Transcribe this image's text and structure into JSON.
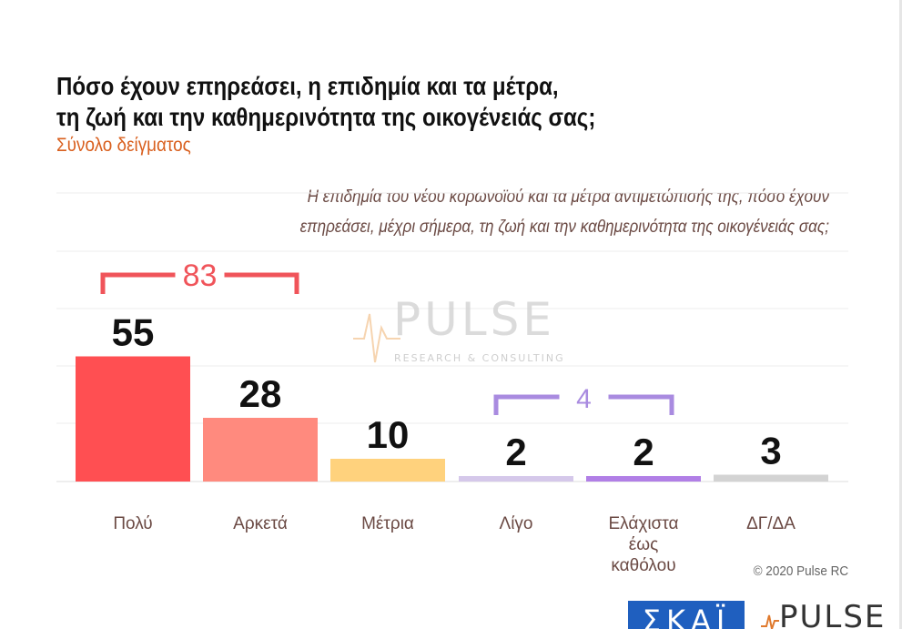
{
  "header": {
    "title_line1": "Πόσο έχουν επηρεάσει, η επιδημία και τα μέτρα,",
    "title_line2": "τη ζωή και την καθημερινότητα της οικογένειάς σας;",
    "subtitle": "Σύνολο δείγματος",
    "question_line1": "Η επιδημία του νέου κορωνοϊού και τα μέτρα αντιμετώπισής της, πόσο έχουν",
    "question_line2": "επηρεάσει, μέχρι σήμερα, τη ζωή και την καθημερινότητα της οικογένειάς σας;"
  },
  "watermark": {
    "brand": "PULSE",
    "tagline": "RESEARCH & CONSULTING"
  },
  "footer": {
    "copyright": "© 2020 Pulse RC"
  },
  "logos": {
    "broadcaster": "ΣΚΑΪ",
    "pollster": "PULSE"
  },
  "colors": {
    "title": "#111111",
    "subtitle": "#d9601f",
    "question": "#6b4a44",
    "category_label": "#6b4a44",
    "bracket_high": "#f0545a",
    "bracket_low": "#a98be0"
  },
  "chart_data": {
    "type": "bar",
    "categories": [
      "Πολύ",
      "Αρκετά",
      "Μέτρια",
      "Λίγο",
      "Ελάχιστα έως καθόλου",
      "ΔΓ/ΔΑ"
    ],
    "category_lines": [
      [
        "Πολύ"
      ],
      [
        "Αρκετά"
      ],
      [
        "Μέτρια"
      ],
      [
        "Λίγο"
      ],
      [
        "Ελάχιστα",
        "έως",
        "καθόλου"
      ],
      [
        "ΔΓ/ΔΑ"
      ]
    ],
    "values": [
      55,
      28,
      10,
      2,
      2,
      3
    ],
    "value_labels": [
      "55",
      "28",
      "10",
      "2",
      "2",
      "3"
    ],
    "bar_colors": [
      "#ff4f52",
      "#ff8a7e",
      "#ffd27d",
      "#d5c8ea",
      "#b17fe6",
      "#d3d3d3"
    ],
    "ylim": [
      0,
      60
    ],
    "grid": true,
    "groups": [
      {
        "label": "83",
        "from": 0,
        "to": 1,
        "color": "#f0545a"
      },
      {
        "label": "4",
        "from": 3,
        "to": 4,
        "color": "#a98be0"
      }
    ]
  }
}
